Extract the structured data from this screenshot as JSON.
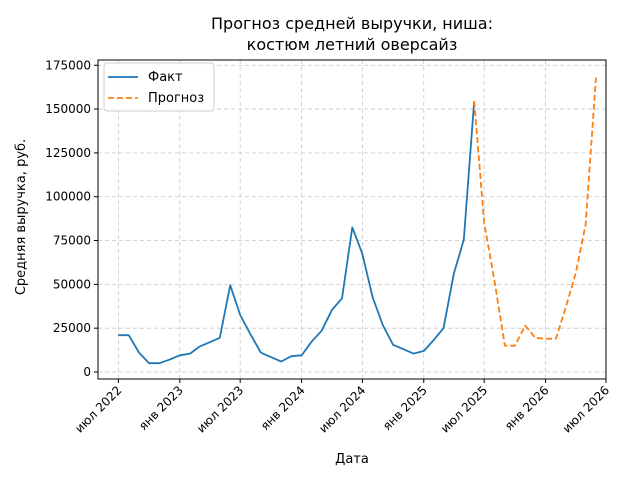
{
  "chart_data": {
    "type": "line",
    "title_lines": [
      "Прогноз средней выручки, ниша:",
      "костюм летний оверсайз"
    ],
    "xlabel": "Дата",
    "ylabel": "Средняя выручка, руб.",
    "xlim": [
      "2022-05-01",
      "2026-07-01"
    ],
    "ylim": [
      -4000,
      178000
    ],
    "yticks": [
      0,
      25000,
      50000,
      75000,
      100000,
      125000,
      150000,
      175000
    ],
    "xticks": [
      {
        "date": "2022-07-01",
        "label": "июл 2022"
      },
      {
        "date": "2023-01-01",
        "label": "янв 2023"
      },
      {
        "date": "2023-07-01",
        "label": "июл 2023"
      },
      {
        "date": "2024-01-01",
        "label": "янв 2024"
      },
      {
        "date": "2024-07-01",
        "label": "июл 2024"
      },
      {
        "date": "2025-01-01",
        "label": "янв 2025"
      },
      {
        "date": "2025-07-01",
        "label": "июл 2025"
      },
      {
        "date": "2026-01-01",
        "label": "янв 2026"
      },
      {
        "date": "2026-07-01",
        "label": "июл 2026"
      }
    ],
    "grid": true,
    "legend_position": "top-left",
    "series": [
      {
        "name": "Факт",
        "color": "#1f77b4",
        "style": "solid",
        "points": [
          [
            "2022-07-01",
            21000
          ],
          [
            "2022-08-01",
            21000
          ],
          [
            "2022-09-01",
            11000
          ],
          [
            "2022-10-01",
            5000
          ],
          [
            "2022-11-01",
            5000
          ],
          [
            "2022-12-01",
            7000
          ],
          [
            "2023-01-01",
            9500
          ],
          [
            "2023-02-01",
            10500
          ],
          [
            "2023-03-01",
            14500
          ],
          [
            "2023-04-01",
            17000
          ],
          [
            "2023-05-01",
            19500
          ],
          [
            "2023-06-01",
            49500
          ],
          [
            "2023-07-01",
            32500
          ],
          [
            "2023-08-01",
            21500
          ],
          [
            "2023-09-01",
            11000
          ],
          [
            "2023-10-01",
            8500
          ],
          [
            "2023-11-01",
            6000
          ],
          [
            "2023-12-01",
            9000
          ],
          [
            "2024-01-01",
            9500
          ],
          [
            "2024-02-01",
            17500
          ],
          [
            "2024-03-01",
            23500
          ],
          [
            "2024-04-01",
            35500
          ],
          [
            "2024-05-01",
            42000
          ],
          [
            "2024-06-01",
            82500
          ],
          [
            "2024-07-01",
            67500
          ],
          [
            "2024-08-01",
            42500
          ],
          [
            "2024-09-01",
            26500
          ],
          [
            "2024-10-01",
            15500
          ],
          [
            "2024-11-01",
            13000
          ],
          [
            "2024-12-01",
            10500
          ],
          [
            "2025-01-01",
            12000
          ],
          [
            "2025-02-01",
            18500
          ],
          [
            "2025-03-01",
            25000
          ],
          [
            "2025-04-01",
            56000
          ],
          [
            "2025-05-01",
            75500
          ],
          [
            "2025-06-01",
            154500
          ]
        ]
      },
      {
        "name": "Прогноз",
        "color": "#ff7f0e",
        "style": "dashed",
        "points": [
          [
            "2025-06-01",
            154500
          ],
          [
            "2025-07-01",
            85000
          ],
          [
            "2025-08-01",
            52000
          ],
          [
            "2025-09-01",
            15000
          ],
          [
            "2025-10-01",
            15000
          ],
          [
            "2025-11-01",
            26500
          ],
          [
            "2025-12-01",
            19500
          ],
          [
            "2026-01-01",
            19000
          ],
          [
            "2026-02-01",
            19000
          ],
          [
            "2026-03-01",
            36000
          ],
          [
            "2026-04-01",
            56000
          ],
          [
            "2026-05-01",
            84000
          ],
          [
            "2026-06-01",
            168000
          ]
        ]
      }
    ]
  }
}
